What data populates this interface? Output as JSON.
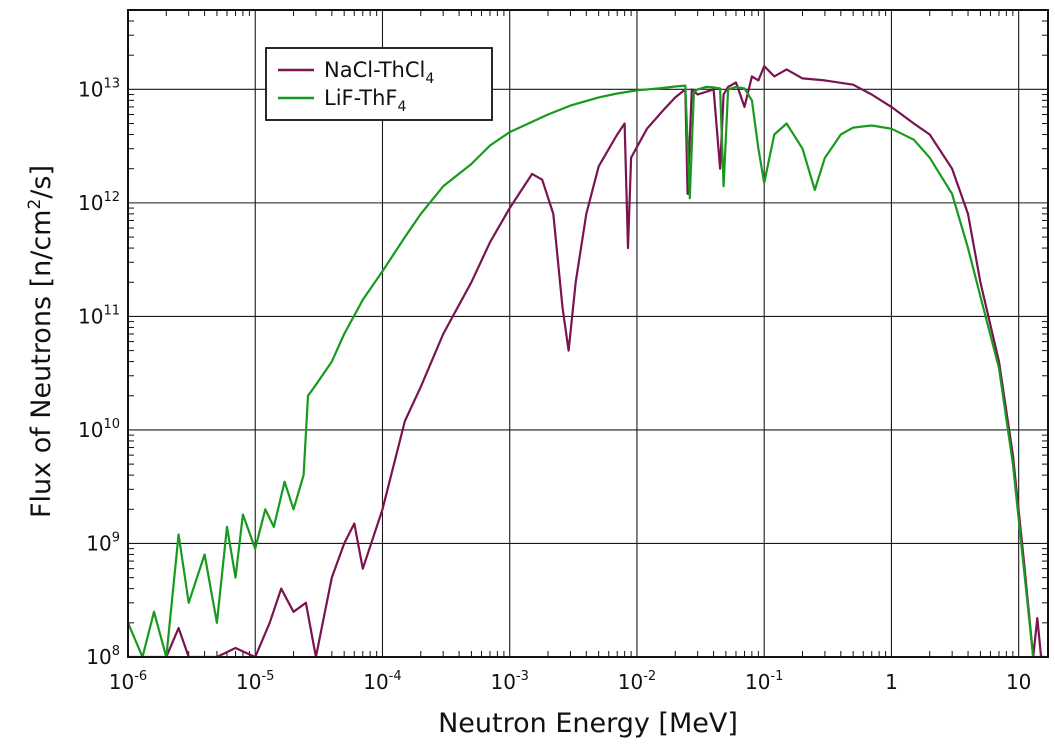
{
  "chart_data": {
    "type": "line",
    "title": "",
    "xlabel": "Neutron Energy [MeV]",
    "ylabel": "Flux of Neutrons [n/cm2/s]",
    "ylabel_base": "Flux of Neutrons [n/cm",
    "ylabel_sup": "2",
    "ylabel_tail": "/s]",
    "x_scale": "log",
    "y_scale": "log",
    "xlim": [
      1e-06,
      17
    ],
    "ylim": [
      100000000.0,
      50000000000000.0
    ],
    "grid": true,
    "legend_position": "top-left",
    "x_ticks": [
      {
        "value": 1e-06,
        "base": "10",
        "exp": "-6"
      },
      {
        "value": 1e-05,
        "base": "10",
        "exp": "-5"
      },
      {
        "value": 0.0001,
        "base": "10",
        "exp": "-4"
      },
      {
        "value": 0.001,
        "base": "10",
        "exp": "-3"
      },
      {
        "value": 0.01,
        "base": "10",
        "exp": "-2"
      },
      {
        "value": 0.1,
        "base": "10",
        "exp": "-1"
      },
      {
        "value": 1,
        "base": "1",
        "exp": ""
      },
      {
        "value": 10,
        "base": "10",
        "exp": ""
      }
    ],
    "y_ticks": [
      {
        "value": 100000000.0,
        "base": "10",
        "exp": "8"
      },
      {
        "value": 1000000000.0,
        "base": "10",
        "exp": "9"
      },
      {
        "value": 10000000000.0,
        "base": "10",
        "exp": "10"
      },
      {
        "value": 100000000000.0,
        "base": "10",
        "exp": "11"
      },
      {
        "value": 1000000000000.0,
        "base": "10",
        "exp": "12"
      },
      {
        "value": 10000000000000.0,
        "base": "10",
        "exp": "13"
      }
    ],
    "series": [
      {
        "name": "NaCl-ThCl4",
        "label_base": "NaCl-ThCl",
        "label_sub": "4",
        "color": "#7a1350",
        "x": [
          1e-06,
          1.5e-06,
          2e-06,
          2.5e-06,
          3e-06,
          4e-06,
          5e-06,
          7e-06,
          1e-05,
          1.3e-05,
          1.6e-05,
          2e-05,
          2.5e-05,
          3e-05,
          4e-05,
          5e-05,
          6e-05,
          7e-05,
          0.0001,
          0.00015,
          0.0002,
          0.0003,
          0.0005,
          0.0007,
          0.001,
          0.0015,
          0.0018,
          0.0022,
          0.0026,
          0.0029,
          0.0033,
          0.004,
          0.005,
          0.007,
          0.008,
          0.0085,
          0.009,
          0.012,
          0.016,
          0.02,
          0.024,
          0.025,
          0.027,
          0.03,
          0.04,
          0.045,
          0.048,
          0.052,
          0.06,
          0.07,
          0.08,
          0.09,
          0.1,
          0.12,
          0.15,
          0.2,
          0.3,
          0.5,
          0.7,
          1,
          1.5,
          2,
          3,
          4,
          5,
          7,
          9,
          11,
          13,
          14,
          15,
          16
        ],
        "y": [
          100000000.0,
          100000000.0,
          100000000.0,
          180000000.0,
          100000000.0,
          100000000.0,
          100000000.0,
          120000000.0,
          100000000.0,
          200000000.0,
          400000000.0,
          250000000.0,
          300000000.0,
          100000000.0,
          500000000.0,
          1000000000.0,
          1500000000.0,
          600000000.0,
          2000000000.0,
          12000000000.0,
          24000000000.0,
          70000000000.0,
          200000000000.0,
          450000000000.0,
          900000000000.0,
          1800000000000.0,
          1600000000000.0,
          800000000000.0,
          120000000000.0,
          50000000000.0,
          200000000000.0,
          800000000000.0,
          2100000000000.0,
          4000000000000.0,
          5000000000000.0,
          400000000000.0,
          2500000000000.0,
          4500000000000.0,
          6500000000000.0,
          8500000000000.0,
          10000000000000.0,
          1200000000000.0,
          10000000000000.0,
          9000000000000.0,
          10000000000000.0,
          2000000000000.0,
          9000000000000.0,
          10500000000000.0,
          11500000000000.0,
          7000000000000.0,
          13000000000000.0,
          12000000000000.0,
          16000000000000.0,
          13000000000000.0,
          15000000000000.0,
          12500000000000.0,
          12000000000000.0,
          11000000000000.0,
          9000000000000.0,
          7000000000000.0,
          5000000000000.0,
          4000000000000.0,
          2000000000000.0,
          800000000000.0,
          200000000000.0,
          40000000000.0,
          6000000000.0,
          700000000.0,
          100000000.0,
          220000000.0,
          100000000.0,
          100000000.0
        ]
      },
      {
        "name": "LiF-ThF4",
        "label_base": "LiF-ThF",
        "label_sub": "4",
        "color": "#189a1e",
        "x": [
          1e-06,
          1.3e-06,
          1.6e-06,
          2e-06,
          2.5e-06,
          3e-06,
          4e-06,
          5e-06,
          6e-06,
          7e-06,
          8e-06,
          1e-05,
          1.2e-05,
          1.4e-05,
          1.7e-05,
          2e-05,
          2.4e-05,
          2.6e-05,
          3e-05,
          4e-05,
          5e-05,
          7e-05,
          0.0001,
          0.00015,
          0.0002,
          0.0003,
          0.0005,
          0.0007,
          0.001,
          0.002,
          0.003,
          0.005,
          0.007,
          0.01,
          0.015,
          0.02,
          0.024,
          0.026,
          0.028,
          0.03,
          0.035,
          0.04,
          0.045,
          0.048,
          0.052,
          0.06,
          0.07,
          0.08,
          0.09,
          0.1,
          0.12,
          0.15,
          0.2,
          0.25,
          0.3,
          0.35,
          0.4,
          0.5,
          0.7,
          1,
          1.5,
          2,
          3,
          4,
          5,
          7,
          9,
          11,
          13,
          14,
          15,
          16
        ],
        "y": [
          200000000.0,
          100000000.0,
          250000000.0,
          100000000.0,
          1200000000.0,
          300000000.0,
          800000000.0,
          200000000.0,
          1400000000.0,
          500000000.0,
          1800000000.0,
          900000000.0,
          2000000000.0,
          1400000000.0,
          3500000000.0,
          2000000000.0,
          4000000000.0,
          20000000000.0,
          25000000000.0,
          40000000000.0,
          70000000000.0,
          140000000000.0,
          250000000000.0,
          500000000000.0,
          800000000000.0,
          1400000000000.0,
          2200000000000.0,
          3200000000000.0,
          4200000000000.0,
          6000000000000.0,
          7200000000000.0,
          8500000000000.0,
          9200000000000.0,
          9800000000000.0,
          10200000000000.0,
          10600000000000.0,
          10800000000000.0,
          1100000000000.0,
          9500000000000.0,
          10000000000000.0,
          10500000000000.0,
          10400000000000.0,
          10200000000000.0,
          1400000000000.0,
          10000000000000.0,
          10500000000000.0,
          10200000000000.0,
          8000000000000.0,
          3000000000000.0,
          1500000000000.0,
          4000000000000.0,
          5000000000000.0,
          3000000000000.0,
          1300000000000.0,
          2500000000000.0,
          3200000000000.0,
          4000000000000.0,
          4600000000000.0,
          4800000000000.0,
          4500000000000.0,
          3600000000000.0,
          2500000000000.0,
          1200000000000.0,
          400000000000.0,
          150000000000.0,
          35000000000.0,
          5000000000.0,
          600000000.0,
          100000000.0,
          100000000.0,
          100000000.0,
          100000000.0
        ]
      }
    ]
  }
}
